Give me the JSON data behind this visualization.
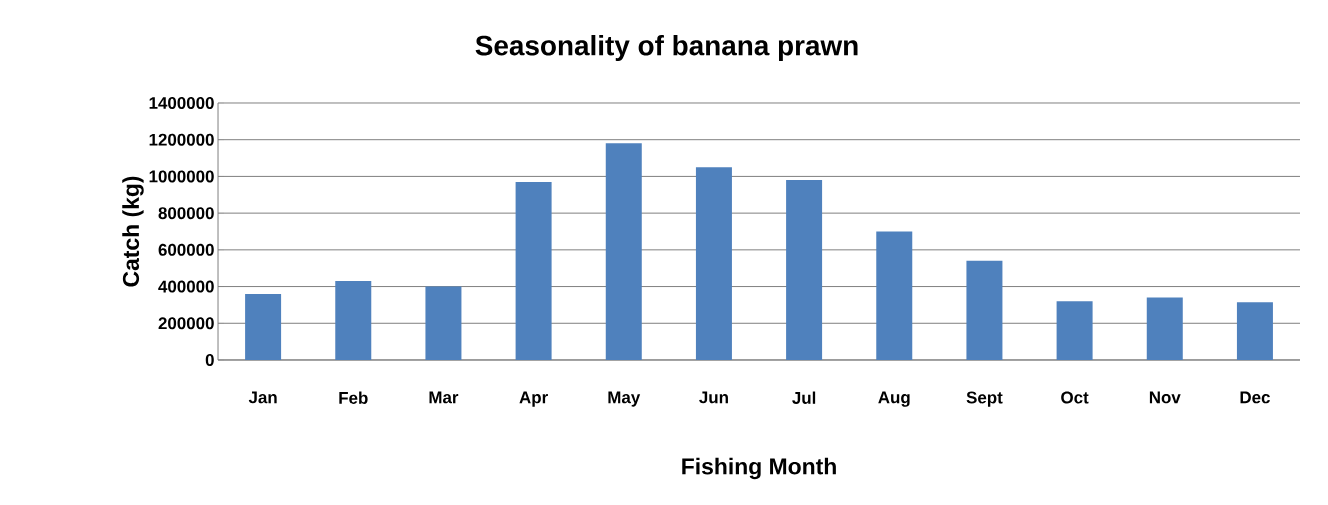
{
  "chart_data": {
    "type": "bar",
    "title": "Seasonality of banana prawn",
    "xlabel": "Fishing Month",
    "ylabel": "Catch (kg)",
    "categories": [
      "Jan",
      "Feb",
      "Mar",
      "Apr",
      "May",
      "Jun",
      "Jul",
      "Aug",
      "Sept",
      "Oct",
      "Nov",
      "Dec"
    ],
    "values": [
      360000,
      430000,
      400000,
      970000,
      1180000,
      1050000,
      980000,
      700000,
      540000,
      320000,
      340000,
      315000
    ],
    "color": "#4f81bd",
    "ylim": [
      0,
      1400000
    ],
    "yticks": [
      0,
      200000,
      400000,
      600000,
      800000,
      1000000,
      1200000,
      1400000
    ],
    "grid": "y"
  }
}
